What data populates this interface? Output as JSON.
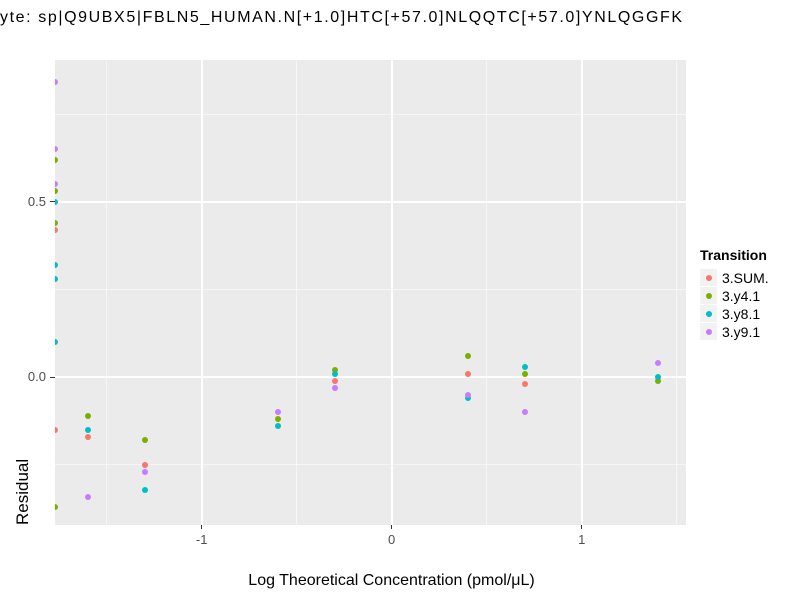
{
  "title": "yte: sp|Q9UBX5|FBLN5_HUMAN.N[+1.0]HTC[+57.0]NLQQTC[+57.0]YNLQGGFK",
  "colors": {
    "panel_bg": "#EBEBEB",
    "gridline": "#FFFFFF",
    "tick_mark": "#333333",
    "axis_text": "#4D4D4D",
    "legend_key_bg": "#F2F2F2",
    "series_red": "#F8766D",
    "series_green": "#7CAE00",
    "series_teal": "#00BFC4",
    "series_purple": "#C77CFF"
  },
  "legend": {
    "title": "Transition",
    "items": [
      {
        "label": "3.SUM.",
        "color": "#F8766D"
      },
      {
        "label": "3.y4.1",
        "color": "#7CAE00"
      },
      {
        "label": "3.y8.1",
        "color": "#00BFC4"
      },
      {
        "label": "3.y9.1",
        "color": "#C77CFF"
      }
    ]
  },
  "chart_data": {
    "type": "scatter",
    "title": "yte: sp|Q9UBX5|FBLN5_HUMAN.N[+1.0]HTC[+57.0]NLQQTC[+57.0]YNLQGGFK",
    "xlabel": "Log Theoretical Concentration (pmol/μL)",
    "ylabel": "Residual",
    "xlim": [
      -1.772,
      1.549
    ],
    "ylim": [
      -0.421,
      0.904
    ],
    "x_major_ticks": [
      -1,
      0,
      1
    ],
    "x_tick_labels": [
      "-1",
      "0",
      "1"
    ],
    "x_minor_ticks": [
      -1.5,
      -0.5,
      0.5,
      1.5
    ],
    "y_major_ticks": [
      0.0,
      0.5
    ],
    "y_tick_labels": [
      "0.0",
      "0.5"
    ],
    "y_minor_ticks": [
      -0.25,
      0.25,
      0.75
    ],
    "grid": true,
    "legend_position": "right",
    "legend_title": "Transition",
    "series": [
      {
        "name": "3.SUM.",
        "color": "#F8766D",
        "points": [
          [
            -1.77,
            0.42
          ],
          [
            -1.77,
            -0.15
          ],
          [
            -1.6,
            -0.17
          ],
          [
            -1.3,
            -0.25
          ],
          [
            -0.3,
            -0.01
          ],
          [
            0.4,
            0.01
          ],
          [
            0.7,
            -0.02
          ]
        ]
      },
      {
        "name": "3.y4.1",
        "color": "#7CAE00",
        "points": [
          [
            -1.77,
            0.62
          ],
          [
            -1.77,
            0.53
          ],
          [
            -1.77,
            0.44
          ],
          [
            -1.77,
            -0.37
          ],
          [
            -1.6,
            -0.11
          ],
          [
            -1.3,
            -0.18
          ],
          [
            -0.6,
            -0.12
          ],
          [
            -0.3,
            0.02
          ],
          [
            0.4,
            0.06
          ],
          [
            0.7,
            0.01
          ],
          [
            1.4,
            -0.01
          ]
        ]
      },
      {
        "name": "3.y8.1",
        "color": "#00BFC4",
        "points": [
          [
            -1.77,
            0.5
          ],
          [
            -1.77,
            0.32
          ],
          [
            -1.77,
            0.28
          ],
          [
            -1.77,
            0.1
          ],
          [
            -1.6,
            -0.15
          ],
          [
            -1.3,
            -0.32
          ],
          [
            -0.6,
            -0.14
          ],
          [
            -0.3,
            0.01
          ],
          [
            0.4,
            -0.06
          ],
          [
            0.7,
            0.03
          ],
          [
            1.4,
            0.0
          ]
        ]
      },
      {
        "name": "3.y9.1",
        "color": "#C77CFF",
        "points": [
          [
            -1.77,
            0.84
          ],
          [
            -1.77,
            0.65
          ],
          [
            -1.77,
            0.55
          ],
          [
            -1.6,
            -0.34
          ],
          [
            -1.3,
            -0.27
          ],
          [
            -0.6,
            -0.1
          ],
          [
            -0.3,
            -0.03
          ],
          [
            0.4,
            -0.05
          ],
          [
            0.7,
            -0.1
          ],
          [
            1.4,
            0.04
          ]
        ]
      }
    ]
  }
}
